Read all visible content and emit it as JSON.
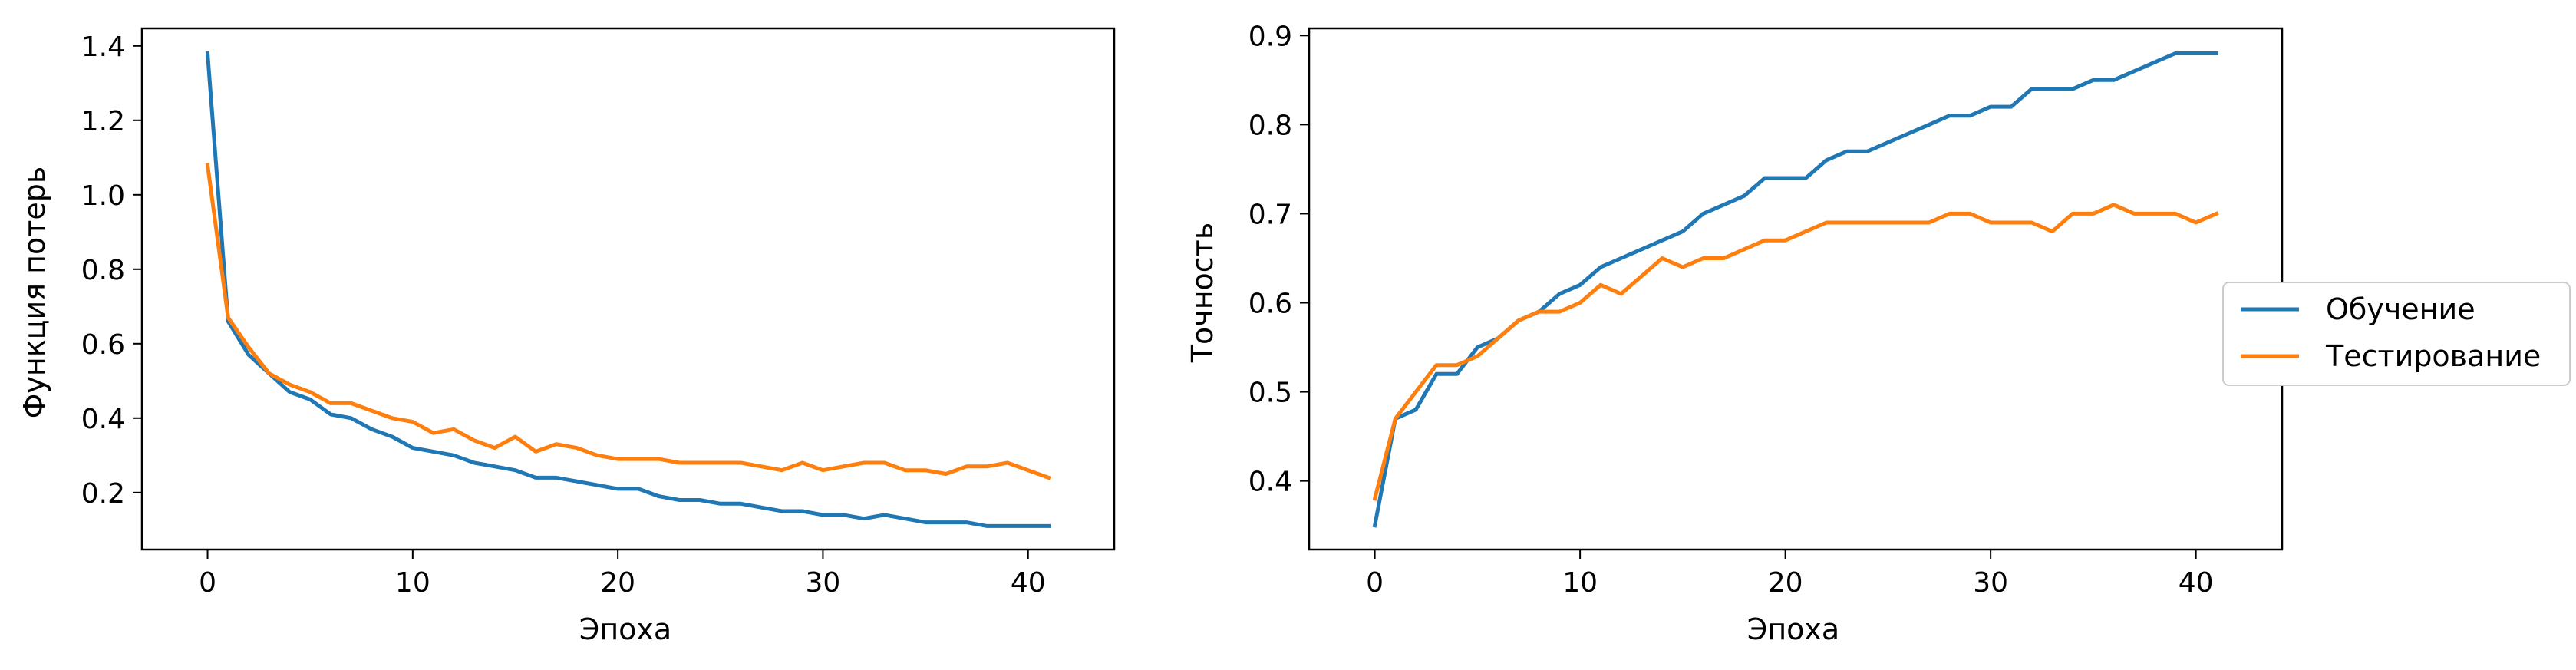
{
  "chart_data": [
    {
      "type": "line",
      "xlabel": "Эпоха",
      "ylabel": "Функция потерь",
      "xlim": [
        -3.2,
        44.2
      ],
      "ylim": [
        0.047,
        1.447
      ],
      "xticks": [
        0,
        10,
        20,
        30,
        40
      ],
      "yticks": [
        0.2,
        0.4,
        0.6,
        0.8,
        1.0,
        1.2,
        1.4
      ],
      "ytick_labels": [
        "0.2",
        "0.4",
        "0.6",
        "0.8",
        "1.0",
        "1.2",
        "1.4"
      ],
      "grid": false,
      "x": [
        0,
        1,
        2,
        3,
        4,
        5,
        6,
        7,
        8,
        9,
        10,
        11,
        12,
        13,
        14,
        15,
        16,
        17,
        18,
        19,
        20,
        21,
        22,
        23,
        24,
        25,
        26,
        27,
        28,
        29,
        30,
        31,
        32,
        33,
        34,
        35,
        36,
        37,
        38,
        39,
        40,
        41
      ],
      "series": [
        {
          "color": "#1f77b4",
          "values": [
            1.38,
            0.66,
            0.57,
            0.52,
            0.47,
            0.45,
            0.41,
            0.4,
            0.37,
            0.35,
            0.32,
            0.31,
            0.3,
            0.28,
            0.27,
            0.26,
            0.24,
            0.24,
            0.23,
            0.22,
            0.21,
            0.21,
            0.19,
            0.18,
            0.18,
            0.17,
            0.17,
            0.16,
            0.15,
            0.15,
            0.14,
            0.14,
            0.13,
            0.14,
            0.13,
            0.12,
            0.12,
            0.12,
            0.11,
            0.11,
            0.11,
            0.11
          ]
        },
        {
          "color": "#ff7f0e",
          "values": [
            1.08,
            0.67,
            0.59,
            0.52,
            0.49,
            0.47,
            0.44,
            0.44,
            0.42,
            0.4,
            0.39,
            0.36,
            0.37,
            0.34,
            0.32,
            0.35,
            0.31,
            0.33,
            0.32,
            0.3,
            0.29,
            0.29,
            0.29,
            0.28,
            0.28,
            0.28,
            0.28,
            0.27,
            0.26,
            0.28,
            0.26,
            0.27,
            0.28,
            0.28,
            0.26,
            0.26,
            0.25,
            0.27,
            0.27,
            0.28,
            0.26,
            0.24
          ]
        }
      ]
    },
    {
      "type": "line",
      "xlabel": "Эпоха",
      "ylabel": "Точность",
      "xlim": [
        -3.2,
        44.2
      ],
      "ylim": [
        0.323,
        0.908
      ],
      "xticks": [
        0,
        10,
        20,
        30,
        40
      ],
      "yticks": [
        0.4,
        0.5,
        0.6,
        0.7,
        0.8,
        0.9
      ],
      "ytick_labels": [
        "0.4",
        "0.5",
        "0.6",
        "0.7",
        "0.8",
        "0.9"
      ],
      "grid": false,
      "legend": "outside-right",
      "x": [
        0,
        1,
        2,
        3,
        4,
        5,
        6,
        7,
        8,
        9,
        10,
        11,
        12,
        13,
        14,
        15,
        16,
        17,
        18,
        19,
        20,
        21,
        22,
        23,
        24,
        25,
        26,
        27,
        28,
        29,
        30,
        31,
        32,
        33,
        34,
        35,
        36,
        37,
        38,
        39,
        40,
        41
      ],
      "series": [
        {
          "name": "Обучение",
          "color": "#1f77b4",
          "values": [
            0.35,
            0.47,
            0.48,
            0.52,
            0.52,
            0.55,
            0.56,
            0.58,
            0.59,
            0.61,
            0.62,
            0.64,
            0.65,
            0.66,
            0.67,
            0.68,
            0.7,
            0.71,
            0.72,
            0.74,
            0.74,
            0.74,
            0.76,
            0.77,
            0.77,
            0.78,
            0.79,
            0.8,
            0.81,
            0.81,
            0.82,
            0.82,
            0.84,
            0.84,
            0.84,
            0.85,
            0.85,
            0.86,
            0.87,
            0.88,
            0.88,
            0.88
          ]
        },
        {
          "name": "Тестирование",
          "color": "#ff7f0e",
          "values": [
            0.38,
            0.47,
            0.5,
            0.53,
            0.53,
            0.54,
            0.56,
            0.58,
            0.59,
            0.59,
            0.6,
            0.62,
            0.61,
            0.63,
            0.65,
            0.64,
            0.65,
            0.65,
            0.66,
            0.67,
            0.67,
            0.68,
            0.69,
            0.69,
            0.69,
            0.69,
            0.69,
            0.69,
            0.7,
            0.7,
            0.69,
            0.69,
            0.69,
            0.68,
            0.7,
            0.7,
            0.71,
            0.7,
            0.7,
            0.7,
            0.69,
            0.7
          ]
        }
      ]
    }
  ]
}
